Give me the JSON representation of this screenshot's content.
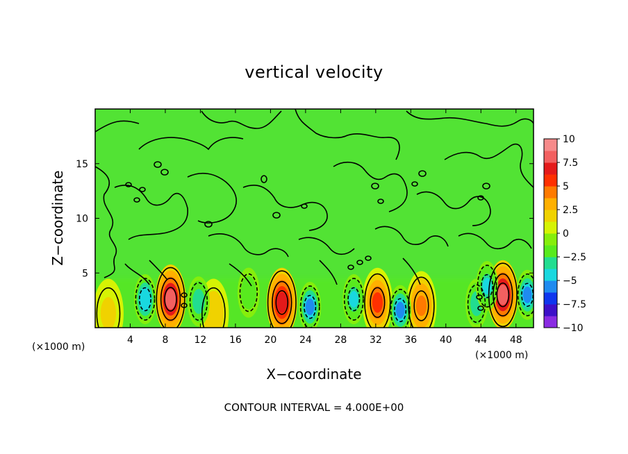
{
  "chart_data": {
    "type": "heatmap",
    "title": "vertical velocity",
    "xlabel": "X−coordinate",
    "ylabel": "Z−coordinate",
    "x_unit_label": "(×1000 m)",
    "x_unit_label_right": "(×1000 m)",
    "footnote": "CONTOUR INTERVAL = 4.000E+00",
    "xlim": [
      0,
      50
    ],
    "ylim": [
      0,
      20
    ],
    "x_ticks": [
      4,
      8,
      12,
      16,
      20,
      24,
      28,
      32,
      36,
      40,
      44,
      48
    ],
    "x_tick_labels": [
      "4",
      "8",
      "12",
      "16",
      "20",
      "24",
      "28",
      "32",
      "36",
      "40",
      "44",
      "48"
    ],
    "y_ticks": [
      5,
      10,
      15
    ],
    "y_tick_labels": [
      "5",
      "10",
      "15"
    ],
    "colorbar": {
      "min": -10,
      "max": 10,
      "ticks": [
        10,
        7.5,
        5,
        2.5,
        0,
        -2.5,
        -5,
        -7.5,
        -10
      ],
      "tick_labels": [
        "10",
        "7.5",
        "5",
        "2.5",
        "0",
        "−2.5",
        "−5",
        "−7.5",
        "−10"
      ],
      "colors": [
        "#8a2be2",
        "#3d10c8",
        "#0f36ee",
        "#1f8bf0",
        "#19d8df",
        "#22dd90",
        "#58ea1e",
        "#86ee0c",
        "#d6f304",
        "#f0d200",
        "#ffb000",
        "#ff7a00",
        "#ff3000",
        "#e41a1a",
        "#f26060",
        "#f78a8a"
      ],
      "background_color": "#52e334"
    },
    "contour_interval": 4.0,
    "features": [
      {
        "kind": "updraft",
        "x": 8.6,
        "z": 2.6,
        "peak": 9.5
      },
      {
        "kind": "updraft",
        "x": 21.3,
        "z": 2.3,
        "peak": 9.0
      },
      {
        "kind": "updraft",
        "x": 32.2,
        "z": 2.3,
        "peak": 7.0
      },
      {
        "kind": "updraft",
        "x": 37.2,
        "z": 2.0,
        "peak": 5.5
      },
      {
        "kind": "updraft",
        "x": 46.5,
        "z": 3.0,
        "peak": 9.5
      },
      {
        "kind": "updraft",
        "x": 13.5,
        "z": 1.3,
        "peak": 3.0
      },
      {
        "kind": "updraft",
        "x": 1.5,
        "z": 1.3,
        "peak": 2.0
      },
      {
        "kind": "downdraft",
        "x": 5.7,
        "z": 2.6,
        "peak": -6.0
      },
      {
        "kind": "downdraft",
        "x": 11.8,
        "z": 2.4,
        "peak": -4.0
      },
      {
        "kind": "downdraft",
        "x": 24.5,
        "z": 1.9,
        "peak": -7.0
      },
      {
        "kind": "downdraft",
        "x": 29.5,
        "z": 2.6,
        "peak": -5.0
      },
      {
        "kind": "downdraft",
        "x": 34.8,
        "z": 1.6,
        "peak": -7.0
      },
      {
        "kind": "downdraft",
        "x": 43.5,
        "z": 2.2,
        "peak": -4.0
      },
      {
        "kind": "downdraft",
        "x": 44.7,
        "z": 3.8,
        "peak": -5.0
      },
      {
        "kind": "downdraft",
        "x": 49.3,
        "z": 3.0,
        "peak": -7.0
      },
      {
        "kind": "downdraft",
        "x": 17.5,
        "z": 3.2,
        "peak": -3.0
      }
    ]
  }
}
